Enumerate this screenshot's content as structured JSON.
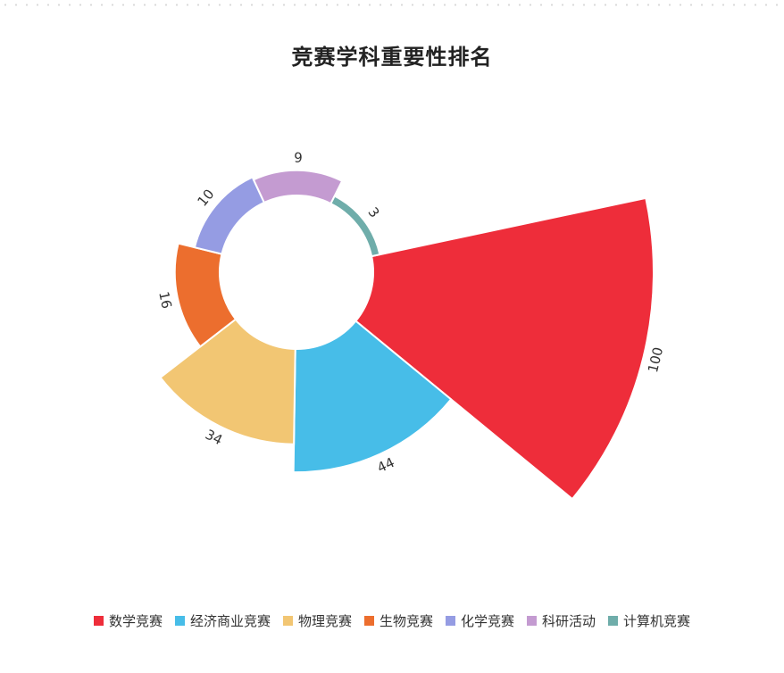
{
  "chart_data": {
    "type": "nightingale-rose",
    "title": "竞赛学科重要性排名",
    "categories": [
      "数学竞赛",
      "经济商业竞赛",
      "物理竞赛",
      "生物竞赛",
      "化学竞赛",
      "科研活动",
      "计算机竞赛"
    ],
    "values": [
      100,
      44,
      34,
      16,
      10,
      9,
      3
    ],
    "colors": [
      "#ee2d3a",
      "#47bde8",
      "#f2c673",
      "#ec6e2e",
      "#959ce3",
      "#c49bd1",
      "#6fadaa"
    ],
    "legend_position": "bottom",
    "grid": false
  }
}
